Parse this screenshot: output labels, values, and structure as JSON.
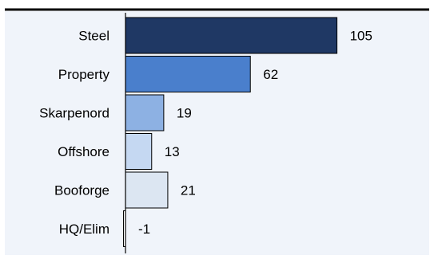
{
  "chart_data": {
    "type": "bar",
    "orientation": "horizontal",
    "categories": [
      "Steel",
      "Property",
      "Skarpenord",
      "Offshore",
      "Booforge",
      "HQ/Elim"
    ],
    "values": [
      105,
      62,
      19,
      13,
      21,
      -1
    ],
    "data_labels": [
      "105",
      "62",
      "19",
      "13",
      "21",
      "-1"
    ],
    "bar_colors": [
      "#1F3864",
      "#4A7FCC",
      "#8DB1E3",
      "#C5D8F2",
      "#DCE6F2",
      "#FFFFFF"
    ],
    "title": "",
    "xlabel": "",
    "ylabel": "",
    "xlim": [
      -5,
      120
    ],
    "grid": false,
    "legend": "none"
  },
  "colors": {
    "plot_background": "#F0F4FA",
    "top_rule": "#000000",
    "bar_outline": "#000000"
  }
}
